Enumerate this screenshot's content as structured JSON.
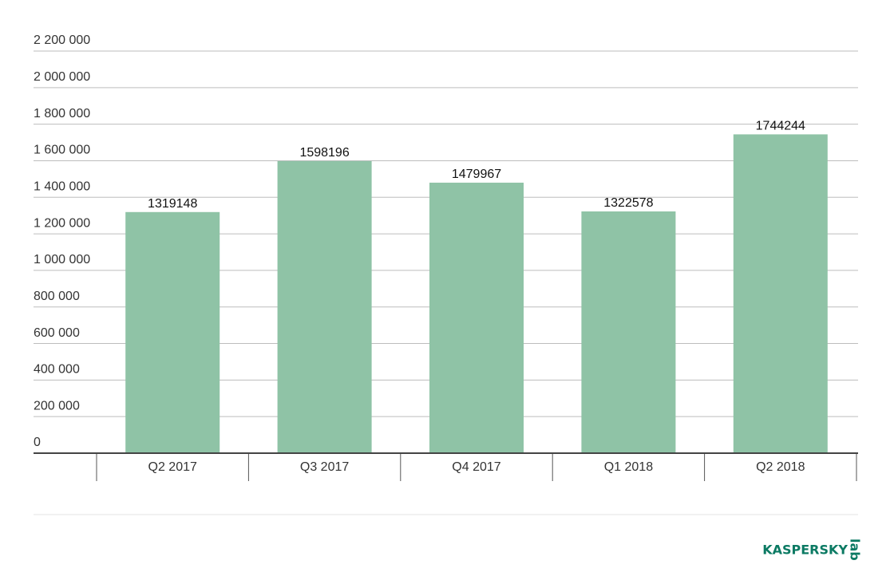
{
  "chart_data": {
    "type": "bar",
    "categories": [
      "Q2 2017",
      "Q3 2017",
      "Q4 2017",
      "Q1 2018",
      "Q2 2018"
    ],
    "values": [
      1319148,
      1598196,
      1479967,
      1322578,
      1744244
    ],
    "color": "#8fc3a6",
    "ylim": [
      0,
      2200000
    ],
    "yticks": [
      0,
      {
        "value": 200000,
        "label": "200 000"
      },
      {
        "value": 400000,
        "label": "400 000"
      },
      {
        "value": 600000,
        "label": "600 000"
      },
      {
        "value": 800000,
        "label": "800 000"
      },
      {
        "value": 1000000,
        "label": "1 000 000"
      },
      {
        "value": 1200000,
        "label": "1 200 000"
      },
      {
        "value": 1400000,
        "label": "1 400 000"
      },
      {
        "value": 1600000,
        "label": "1 600 000"
      },
      {
        "value": 1800000,
        "label": "1 800 000"
      },
      {
        "value": 2000000,
        "label": "2 000 000"
      },
      {
        "value": 2200000,
        "label": "2 200 000"
      }
    ],
    "grid": true
  },
  "logo": {
    "text": "KASPERSKY",
    "suffix": "lab"
  }
}
